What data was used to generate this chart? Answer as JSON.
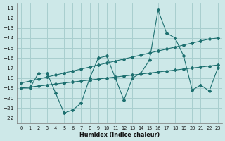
{
  "title": "",
  "xlabel": "Humidex (Indice chaleur)",
  "ylabel": "",
  "bg_color": "#cde8e8",
  "grid_color": "#a8cece",
  "line_color": "#1e7070",
  "x": [
    0,
    1,
    2,
    3,
    4,
    5,
    6,
    7,
    8,
    9,
    10,
    11,
    12,
    13,
    14,
    15,
    16,
    17,
    18,
    19,
    20,
    21,
    22,
    23
  ],
  "y_main": [
    -19,
    -19,
    -17.5,
    -17.5,
    -19.5,
    -21.5,
    -21.2,
    -20.5,
    -18.0,
    -16.0,
    -15.8,
    -18.0,
    -20.2,
    -18.0,
    -17.5,
    -16.2,
    -11.2,
    -13.5,
    -14.0,
    -15.8,
    -19.2,
    -18.7,
    -19.3,
    -17.0
  ],
  "y_upper": [
    -18.5,
    -18.3,
    -18.1,
    -17.9,
    -17.7,
    -17.5,
    -17.3,
    -17.1,
    -16.9,
    -16.7,
    -16.5,
    -16.3,
    -16.1,
    -15.9,
    -15.7,
    -15.5,
    -15.3,
    -15.1,
    -14.9,
    -14.7,
    -14.5,
    -14.3,
    -14.1,
    -14.0
  ],
  "y_lower": [
    -19.0,
    -18.9,
    -18.8,
    -18.7,
    -18.6,
    -18.5,
    -18.4,
    -18.3,
    -18.2,
    -18.1,
    -18.0,
    -17.9,
    -17.8,
    -17.7,
    -17.6,
    -17.5,
    -17.4,
    -17.3,
    -17.2,
    -17.1,
    -17.0,
    -16.9,
    -16.8,
    -16.7
  ],
  "ylim": [
    -22.5,
    -10.5
  ],
  "xlim": [
    -0.5,
    23.5
  ],
  "yticks": [
    -22,
    -21,
    -20,
    -19,
    -18,
    -17,
    -16,
    -15,
    -14,
    -13,
    -12,
    -11
  ],
  "xticks": [
    0,
    1,
    2,
    3,
    4,
    5,
    6,
    7,
    8,
    9,
    10,
    11,
    12,
    13,
    14,
    15,
    16,
    17,
    18,
    19,
    20,
    21,
    22,
    23
  ]
}
